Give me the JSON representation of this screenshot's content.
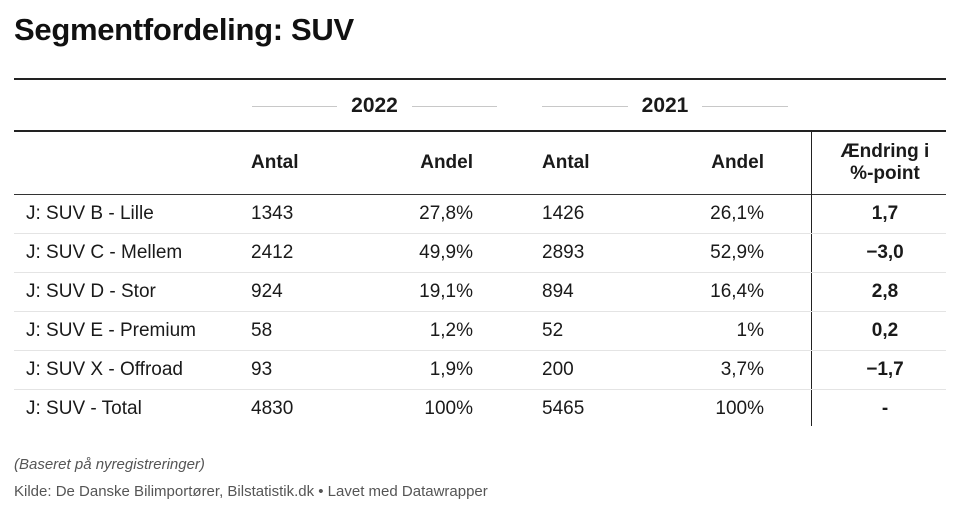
{
  "title": "Segmentfordeling: SUV",
  "groups": [
    "2022",
    "2021"
  ],
  "headers": {
    "label": "",
    "antal_2022": "Antal",
    "andel_2022": "Andel",
    "antal_2021": "Antal",
    "andel_2021": "Andel",
    "change": "Ændring i %-point"
  },
  "chart_data": {
    "type": "table",
    "title": "Segmentfordeling: SUV",
    "columns": [
      "",
      "2022 Antal",
      "2022 Andel",
      "2021 Antal",
      "2021 Andel",
      "Ændring i %-point"
    ],
    "rows": [
      {
        "label": "J: SUV B - Lille",
        "antal_2022": "1343",
        "andel_2022": "27,8%",
        "antal_2021": "1426",
        "andel_2021": "26,1%",
        "change": "1,7"
      },
      {
        "label": "J: SUV C - Mellem",
        "antal_2022": "2412",
        "andel_2022": "49,9%",
        "antal_2021": "2893",
        "andel_2021": "52,9%",
        "change": "−3,0"
      },
      {
        "label": "J: SUV D - Stor",
        "antal_2022": "924",
        "andel_2022": "19,1%",
        "antal_2021": "894",
        "andel_2021": "16,4%",
        "change": "2,8"
      },
      {
        "label": "J: SUV E - Premium",
        "antal_2022": "58",
        "andel_2022": "1,2%",
        "antal_2021": "52",
        "andel_2021": "1%",
        "change": "0,2"
      },
      {
        "label": "J: SUV X - Offroad",
        "antal_2022": "93",
        "andel_2022": "1,9%",
        "antal_2021": "200",
        "andel_2021": "3,7%",
        "change": "−1,7"
      },
      {
        "label": "J: SUV - Total",
        "antal_2022": "4830",
        "andel_2022": "100%",
        "antal_2021": "5465",
        "andel_2021": "100%",
        "change": "-"
      }
    ]
  },
  "note": "(Baseret på nyregistreringer)",
  "source": "Kilde: De Danske Bilimportører, Bilstatistik.dk • Lavet med Datawrapper"
}
